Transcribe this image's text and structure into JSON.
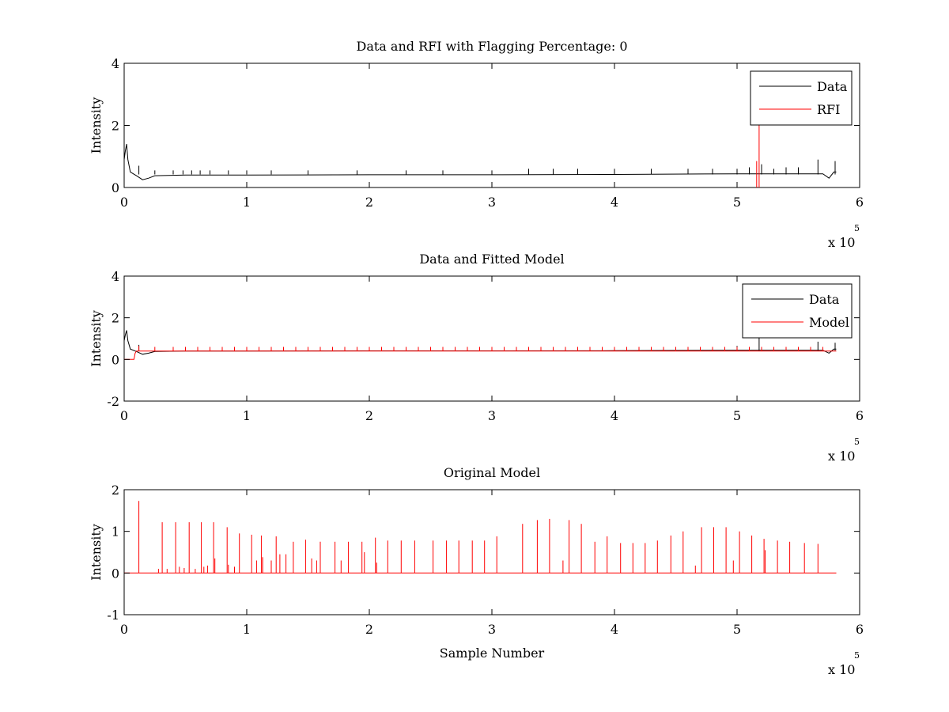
{
  "chart_data": [
    {
      "type": "line",
      "title": "Data and RFI with Flagging Percentage: 0",
      "xlabel": "",
      "ylabel": "Intensity",
      "xlim": [
        0,
        6
      ],
      "ylim": [
        0,
        4
      ],
      "x_multiplier": "x 10",
      "x_multiplier_exponent": "5",
      "xticks": [
        "0",
        "1",
        "2",
        "3",
        "4",
        "5",
        "6"
      ],
      "yticks": [
        "0",
        "2",
        "4"
      ],
      "legend_position": "top-right",
      "series": [
        {
          "name": "Data",
          "color": "#000000",
          "baseline": 0.42,
          "points": [
            [
              0,
              0.9
            ],
            [
              0.01,
              1.2
            ],
            [
              0.02,
              1.4
            ],
            [
              0.03,
              0.9
            ],
            [
              0.05,
              0.5
            ],
            [
              0.1,
              0.38
            ],
            [
              0.15,
              0.25
            ],
            [
              0.2,
              0.3
            ],
            [
              0.25,
              0.38
            ],
            [
              0.5,
              0.4
            ],
            [
              1.0,
              0.4
            ],
            [
              2.0,
              0.41
            ],
            [
              3.0,
              0.41
            ],
            [
              4.0,
              0.42
            ],
            [
              5.0,
              0.44
            ],
            [
              5.7,
              0.44
            ],
            [
              5.75,
              0.3
            ],
            [
              5.79,
              0.5
            ],
            [
              5.81,
              0.5
            ]
          ],
          "spikes": [
            [
              0.12,
              0.7
            ],
            [
              0.25,
              0.55
            ],
            [
              0.4,
              0.55
            ],
            [
              0.48,
              0.55
            ],
            [
              0.55,
              0.55
            ],
            [
              0.62,
              0.55
            ],
            [
              0.7,
              0.55
            ],
            [
              0.85,
              0.55
            ],
            [
              1.0,
              0.55
            ],
            [
              1.2,
              0.55
            ],
            [
              1.5,
              0.55
            ],
            [
              1.9,
              0.55
            ],
            [
              2.3,
              0.55
            ],
            [
              2.6,
              0.55
            ],
            [
              3.0,
              0.55
            ],
            [
              3.3,
              0.6
            ],
            [
              3.5,
              0.6
            ],
            [
              3.7,
              0.6
            ],
            [
              4.0,
              0.6
            ],
            [
              4.3,
              0.6
            ],
            [
              4.6,
              0.6
            ],
            [
              4.8,
              0.6
            ],
            [
              5.0,
              0.6
            ],
            [
              5.1,
              0.65
            ],
            [
              5.2,
              0.75
            ],
            [
              5.3,
              0.6
            ],
            [
              5.4,
              0.65
            ],
            [
              5.5,
              0.65
            ],
            [
              5.66,
              0.9
            ],
            [
              5.8,
              0.85
            ]
          ]
        },
        {
          "name": "RFI",
          "color": "#ff0000",
          "spikes": [
            [
              5.18,
              2.0
            ],
            [
              5.16,
              0.85
            ]
          ]
        }
      ]
    },
    {
      "type": "line",
      "title": "Data and Fitted Model",
      "xlabel": "",
      "ylabel": "Intensity",
      "xlim": [
        0,
        6
      ],
      "ylim": [
        -2,
        4
      ],
      "x_multiplier": "x 10",
      "x_multiplier_exponent": "5",
      "xticks": [
        "0",
        "1",
        "2",
        "3",
        "4",
        "5",
        "6"
      ],
      "yticks": [
        "-2",
        "0",
        "2",
        "4"
      ],
      "legend_position": "top-right",
      "series": [
        {
          "name": "Data",
          "color": "#000000",
          "baseline": 0.42,
          "points": [
            [
              0,
              0.9
            ],
            [
              0.01,
              1.2
            ],
            [
              0.02,
              1.4
            ],
            [
              0.03,
              0.9
            ],
            [
              0.05,
              0.5
            ],
            [
              0.1,
              0.38
            ],
            [
              0.15,
              0.25
            ],
            [
              0.2,
              0.3
            ],
            [
              0.25,
              0.38
            ],
            [
              0.5,
              0.4
            ],
            [
              1.0,
              0.4
            ],
            [
              2.0,
              0.41
            ],
            [
              3.0,
              0.41
            ],
            [
              4.0,
              0.42
            ],
            [
              5.0,
              0.44
            ],
            [
              5.7,
              0.44
            ],
            [
              5.75,
              0.3
            ],
            [
              5.79,
              0.5
            ],
            [
              5.81,
              0.5
            ]
          ],
          "spikes": [
            [
              0.12,
              0.7
            ],
            [
              1.0,
              0.6
            ],
            [
              2.0,
              0.6
            ],
            [
              3.0,
              0.6
            ],
            [
              4.0,
              0.6
            ],
            [
              5.0,
              0.65
            ],
            [
              5.18,
              1.1
            ],
            [
              5.66,
              0.85
            ],
            [
              5.8,
              0.8
            ]
          ]
        },
        {
          "name": "Model",
          "color": "#ff0000",
          "baseline": 0.4,
          "points": [
            [
              0,
              0.0
            ],
            [
              0.08,
              0.0
            ],
            [
              0.09,
              0.3
            ],
            [
              0.1,
              0.4
            ],
            [
              5.81,
              0.4
            ]
          ],
          "spikes": [
            [
              0.12,
              0.65
            ],
            [
              0.25,
              0.6
            ],
            [
              0.4,
              0.6
            ],
            [
              0.5,
              0.6
            ],
            [
              0.6,
              0.6
            ],
            [
              0.7,
              0.6
            ],
            [
              0.8,
              0.6
            ],
            [
              0.9,
              0.6
            ],
            [
              1.0,
              0.6
            ],
            [
              1.1,
              0.6
            ],
            [
              1.2,
              0.6
            ],
            [
              1.3,
              0.6
            ],
            [
              1.4,
              0.6
            ],
            [
              1.5,
              0.6
            ],
            [
              1.6,
              0.6
            ],
            [
              1.7,
              0.6
            ],
            [
              1.8,
              0.6
            ],
            [
              1.9,
              0.6
            ],
            [
              2.0,
              0.6
            ],
            [
              2.1,
              0.6
            ],
            [
              2.2,
              0.6
            ],
            [
              2.3,
              0.6
            ],
            [
              2.4,
              0.6
            ],
            [
              2.5,
              0.6
            ],
            [
              2.6,
              0.6
            ],
            [
              2.7,
              0.6
            ],
            [
              2.8,
              0.6
            ],
            [
              2.9,
              0.6
            ],
            [
              3.0,
              0.6
            ],
            [
              3.1,
              0.6
            ],
            [
              3.2,
              0.6
            ],
            [
              3.3,
              0.6
            ],
            [
              3.4,
              0.6
            ],
            [
              3.5,
              0.6
            ],
            [
              3.6,
              0.6
            ],
            [
              3.7,
              0.6
            ],
            [
              3.8,
              0.6
            ],
            [
              3.9,
              0.6
            ],
            [
              4.0,
              0.6
            ],
            [
              4.1,
              0.6
            ],
            [
              4.2,
              0.6
            ],
            [
              4.3,
              0.6
            ],
            [
              4.4,
              0.6
            ],
            [
              4.5,
              0.6
            ],
            [
              4.6,
              0.6
            ],
            [
              4.7,
              0.6
            ],
            [
              4.8,
              0.6
            ],
            [
              4.9,
              0.6
            ],
            [
              5.0,
              0.6
            ],
            [
              5.1,
              0.6
            ],
            [
              5.2,
              0.6
            ],
            [
              5.3,
              0.6
            ],
            [
              5.4,
              0.6
            ],
            [
              5.5,
              0.6
            ],
            [
              5.6,
              0.6
            ],
            [
              5.7,
              0.6
            ]
          ]
        }
      ]
    },
    {
      "type": "line",
      "title": "Original Model",
      "xlabel": "Sample Number",
      "ylabel": "Intensity",
      "xlim": [
        0,
        6
      ],
      "ylim": [
        -1,
        2
      ],
      "x_multiplier": "x 10",
      "x_multiplier_exponent": "5",
      "xticks": [
        "0",
        "1",
        "2",
        "3",
        "4",
        "5",
        "6"
      ],
      "yticks": [
        "-1",
        "0",
        "1",
        "2"
      ],
      "series": [
        {
          "name": "",
          "color": "#ff0000",
          "baseline": 0.0,
          "points": [
            [
              0,
              0.0
            ],
            [
              5.81,
              0.0
            ]
          ],
          "spikes": [
            [
              0.12,
              1.73
            ],
            [
              0.28,
              0.1
            ],
            [
              0.31,
              1.22
            ],
            [
              0.35,
              0.1
            ],
            [
              0.42,
              1.22
            ],
            [
              0.45,
              0.15
            ],
            [
              0.49,
              0.12
            ],
            [
              0.53,
              1.22
            ],
            [
              0.58,
              0.1
            ],
            [
              0.63,
              1.22
            ],
            [
              0.65,
              0.15
            ],
            [
              0.68,
              0.18
            ],
            [
              0.73,
              1.22
            ],
            [
              0.74,
              0.35
            ],
            [
              0.84,
              1.1
            ],
            [
              0.85,
              0.2
            ],
            [
              0.9,
              0.15
            ],
            [
              0.94,
              0.95
            ],
            [
              1.04,
              0.92
            ],
            [
              1.08,
              0.3
            ],
            [
              1.12,
              0.9
            ],
            [
              1.13,
              0.38
            ],
            [
              1.2,
              0.3
            ],
            [
              1.24,
              0.88
            ],
            [
              1.27,
              0.45
            ],
            [
              1.32,
              0.45
            ],
            [
              1.38,
              0.75
            ],
            [
              1.48,
              0.8
            ],
            [
              1.53,
              0.35
            ],
            [
              1.57,
              0.3
            ],
            [
              1.6,
              0.75
            ],
            [
              1.72,
              0.75
            ],
            [
              1.77,
              0.3
            ],
            [
              1.83,
              0.75
            ],
            [
              1.94,
              0.75
            ],
            [
              1.96,
              0.5
            ],
            [
              2.05,
              0.85
            ],
            [
              2.06,
              0.25
            ],
            [
              2.15,
              0.78
            ],
            [
              2.26,
              0.78
            ],
            [
              2.37,
              0.78
            ],
            [
              2.52,
              0.78
            ],
            [
              2.63,
              0.78
            ],
            [
              2.73,
              0.78
            ],
            [
              2.84,
              0.78
            ],
            [
              2.94,
              0.78
            ],
            [
              3.04,
              0.88
            ],
            [
              3.25,
              1.18
            ],
            [
              3.37,
              1.27
            ],
            [
              3.47,
              1.3
            ],
            [
              3.58,
              0.3
            ],
            [
              3.63,
              1.27
            ],
            [
              3.73,
              1.18
            ],
            [
              3.84,
              0.75
            ],
            [
              3.94,
              0.88
            ],
            [
              4.05,
              0.72
            ],
            [
              4.15,
              0.72
            ],
            [
              4.25,
              0.72
            ],
            [
              4.35,
              0.78
            ],
            [
              4.46,
              0.9
            ],
            [
              4.56,
              1.0
            ],
            [
              4.66,
              0.18
            ],
            [
              4.71,
              1.1
            ],
            [
              4.81,
              1.1
            ],
            [
              4.91,
              1.1
            ],
            [
              4.97,
              0.3
            ],
            [
              5.02,
              1.0
            ],
            [
              5.12,
              0.9
            ],
            [
              5.22,
              0.82
            ],
            [
              5.23,
              0.55
            ],
            [
              5.33,
              0.78
            ],
            [
              5.43,
              0.75
            ],
            [
              5.55,
              0.72
            ],
            [
              5.66,
              0.7
            ]
          ]
        }
      ]
    }
  ]
}
